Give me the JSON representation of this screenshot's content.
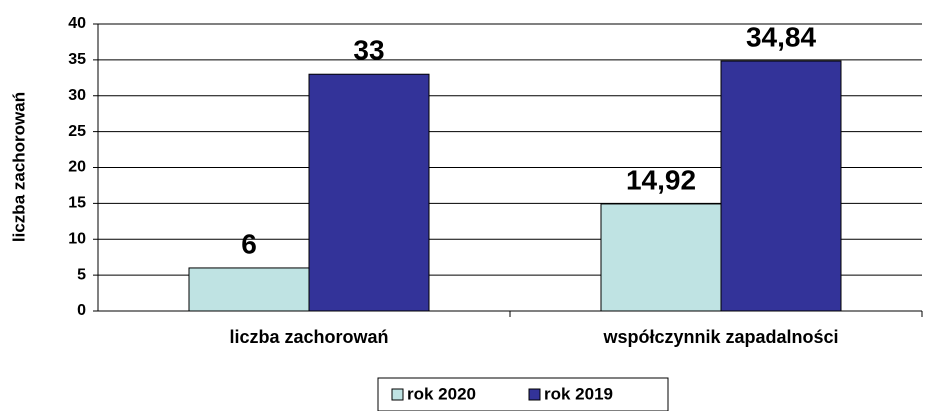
{
  "chart_data": {
    "type": "bar",
    "y_label": "liczba zachorowań",
    "categories": [
      "liczba zachorowań",
      "współczynnik zapadalności"
    ],
    "series": [
      {
        "name": "rok 2020",
        "color": "#bfe3e3",
        "values": [
          6,
          14.92
        ],
        "value_labels": [
          "6",
          "14,92"
        ]
      },
      {
        "name": "rok 2019",
        "color": "#333399",
        "values": [
          33,
          34.84
        ],
        "value_labels": [
          "33",
          "34,84"
        ]
      }
    ],
    "ylim": [
      0,
      40
    ],
    "yticks": [
      0,
      5,
      10,
      15,
      20,
      25,
      30,
      35,
      40
    ],
    "grid": true,
    "legend": "bottom"
  }
}
